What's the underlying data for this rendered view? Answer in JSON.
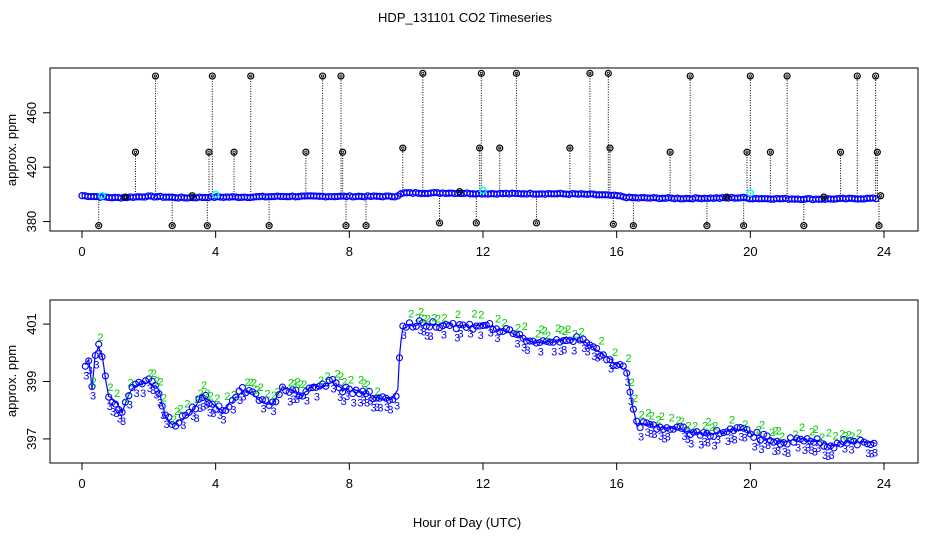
{
  "figure": {
    "title": "HDP_131101  CO2 Timeseries",
    "xlabel": "Hour of Day (UTC)"
  },
  "colors": {
    "outlier": "#000000",
    "spike_line": "#000000",
    "series_main": "#0000ff",
    "series_highlight": "#00ffff",
    "marker_2": "#00cc00",
    "marker_3": "#0000ff",
    "line_bottom": "#0000ff",
    "axis": "#000000"
  },
  "chart_data": [
    {
      "type": "scatter",
      "name": "top-panel",
      "ylabel": "approx. ppm",
      "xlim": [
        0,
        24
      ],
      "ylim": [
        376,
        490
      ],
      "xticks": [
        0,
        4,
        8,
        12,
        16,
        20,
        24
      ],
      "yticks": [
        380,
        420,
        460
      ],
      "baseline": [
        [
          0,
          399
        ],
        [
          1,
          397.5
        ],
        [
          2,
          398.5
        ],
        [
          3,
          397.5
        ],
        [
          4,
          398
        ],
        [
          5,
          398
        ],
        [
          6,
          398.5
        ],
        [
          7,
          398.5
        ],
        [
          8,
          398.5
        ],
        [
          9.4,
          398.5
        ],
        [
          9.6,
          401
        ],
        [
          11,
          401
        ],
        [
          12,
          400.5
        ],
        [
          14,
          400.5
        ],
        [
          15.2,
          400
        ],
        [
          16,
          399
        ],
        [
          16.4,
          397.5
        ],
        [
          18,
          397
        ],
        [
          19.8,
          397.5
        ],
        [
          20,
          397
        ],
        [
          22,
          396.5
        ],
        [
          23.8,
          397
        ]
      ],
      "highlights": [
        [
          4.0,
          400
        ],
        [
          12.0,
          403
        ],
        [
          20.0,
          401
        ],
        [
          0.6,
          399
        ]
      ],
      "outliers": [
        [
          0.5,
          377
        ],
        [
          1.3,
          398
        ],
        [
          1.6,
          431
        ],
        [
          2.2,
          487
        ],
        [
          2.7,
          377
        ],
        [
          3.3,
          399
        ],
        [
          3.75,
          377
        ],
        [
          3.8,
          431
        ],
        [
          3.9,
          487
        ],
        [
          4.55,
          431
        ],
        [
          5.05,
          487
        ],
        [
          5.6,
          377
        ],
        [
          6.7,
          431
        ],
        [
          7.2,
          487
        ],
        [
          7.75,
          487
        ],
        [
          7.8,
          431
        ],
        [
          7.9,
          377
        ],
        [
          8.5,
          377
        ],
        [
          9.6,
          434
        ],
        [
          10.2,
          489
        ],
        [
          10.7,
          379
        ],
        [
          11.3,
          402
        ],
        [
          11.8,
          379
        ],
        [
          11.9,
          434
        ],
        [
          11.95,
          489
        ],
        [
          12.5,
          434
        ],
        [
          13.0,
          489
        ],
        [
          13.6,
          379
        ],
        [
          14.6,
          434
        ],
        [
          15.2,
          489
        ],
        [
          15.75,
          489
        ],
        [
          15.8,
          434
        ],
        [
          15.9,
          378
        ],
        [
          16.5,
          377
        ],
        [
          17.6,
          431
        ],
        [
          18.2,
          487
        ],
        [
          18.7,
          377
        ],
        [
          19.3,
          398
        ],
        [
          19.8,
          377
        ],
        [
          19.9,
          431
        ],
        [
          20.0,
          487
        ],
        [
          20.6,
          431
        ],
        [
          21.1,
          487
        ],
        [
          21.6,
          377
        ],
        [
          22.2,
          398
        ],
        [
          22.7,
          431
        ],
        [
          23.2,
          487
        ],
        [
          23.75,
          487
        ],
        [
          23.8,
          431
        ],
        [
          23.85,
          377
        ],
        [
          23.9,
          399
        ]
      ]
    },
    {
      "type": "line",
      "name": "bottom-panel",
      "ylabel": "approx. ppm",
      "xlim": [
        0,
        24
      ],
      "ylim": [
        396.3,
        401.7
      ],
      "xticks": [
        0,
        4,
        8,
        12,
        16,
        20,
        24
      ],
      "yticks": [
        397,
        399,
        401
      ],
      "marker_labels": [
        "2",
        "3"
      ],
      "series": [
        [
          0.1,
          399.6
        ],
        [
          0.2,
          399.8
        ],
        [
          0.3,
          398.7
        ],
        [
          0.4,
          400
        ],
        [
          0.5,
          400.2
        ],
        [
          0.6,
          399.9
        ],
        [
          0.7,
          399.1
        ],
        [
          0.8,
          398.5
        ],
        [
          1.0,
          398.3
        ],
        [
          1.2,
          397.9
        ],
        [
          1.4,
          398.6
        ],
        [
          1.7,
          398.9
        ],
        [
          2.0,
          399.0
        ],
        [
          2.3,
          398.7
        ],
        [
          2.5,
          397.8
        ],
        [
          2.7,
          397.5
        ],
        [
          3.0,
          397.7
        ],
        [
          3.3,
          398.0
        ],
        [
          3.6,
          398.5
        ],
        [
          3.9,
          398.2
        ],
        [
          4.2,
          398.0
        ],
        [
          4.5,
          398.3
        ],
        [
          4.8,
          398.7
        ],
        [
          5.1,
          398.6
        ],
        [
          5.4,
          398.3
        ],
        [
          5.7,
          398.2
        ],
        [
          6.0,
          398.8
        ],
        [
          6.3,
          398.7
        ],
        [
          6.6,
          398.5
        ],
        [
          6.9,
          398.9
        ],
        [
          7.2,
          398.8
        ],
        [
          7.5,
          399.0
        ],
        [
          7.8,
          398.7
        ],
        [
          8.1,
          398.7
        ],
        [
          8.4,
          398.6
        ],
        [
          8.7,
          398.5
        ],
        [
          9.0,
          398.4
        ],
        [
          9.3,
          398.4
        ],
        [
          9.45,
          398.7
        ],
        [
          9.5,
          399.9
        ],
        [
          9.6,
          400.9
        ],
        [
          10.0,
          401.0
        ],
        [
          10.5,
          401.0
        ],
        [
          11.0,
          401.0
        ],
        [
          11.5,
          400.9
        ],
        [
          12.0,
          401.0
        ],
        [
          12.5,
          400.8
        ],
        [
          13.0,
          400.6
        ],
        [
          13.5,
          400.4
        ],
        [
          14.0,
          400.4
        ],
        [
          14.5,
          400.5
        ],
        [
          15.0,
          400.4
        ],
        [
          15.5,
          400.0
        ],
        [
          16.0,
          399.6
        ],
        [
          16.3,
          399.4
        ],
        [
          16.45,
          398.3
        ],
        [
          16.6,
          397.5
        ],
        [
          17.0,
          397.5
        ],
        [
          17.5,
          397.4
        ],
        [
          18.0,
          397.3
        ],
        [
          18.5,
          397.2
        ],
        [
          19.0,
          397.2
        ],
        [
          19.5,
          397.3
        ],
        [
          19.8,
          397.3
        ],
        [
          20.0,
          397.2
        ],
        [
          20.5,
          397.0
        ],
        [
          21.0,
          396.9
        ],
        [
          21.5,
          397.0
        ],
        [
          22.0,
          396.9
        ],
        [
          22.5,
          396.8
        ],
        [
          23.0,
          396.9
        ],
        [
          23.5,
          396.9
        ],
        [
          23.8,
          396.9
        ]
      ]
    }
  ]
}
